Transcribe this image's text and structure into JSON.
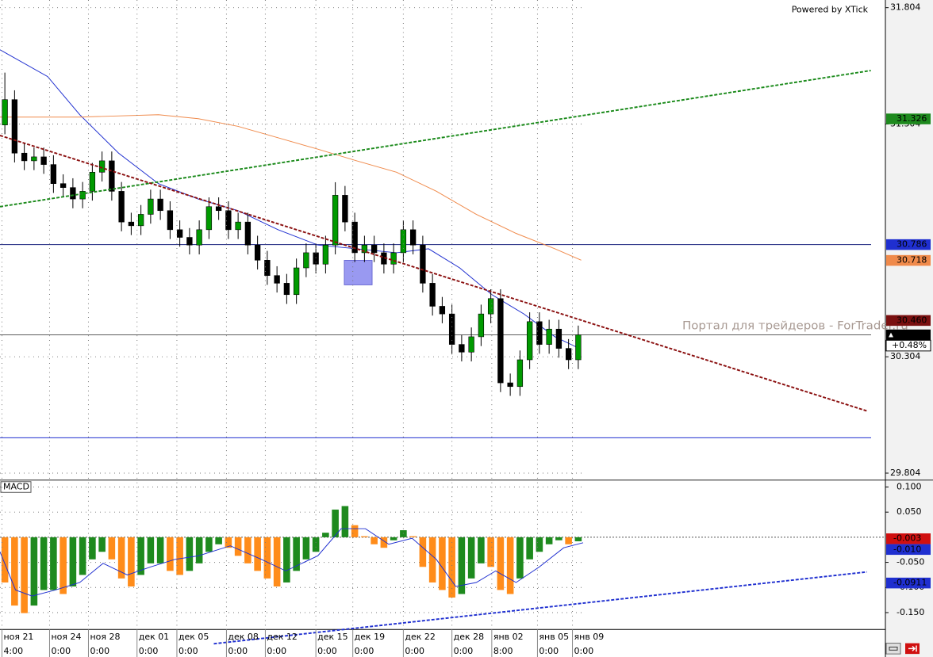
{
  "chart_data": [
    {
      "type": "candlestick",
      "xlim": [
        0,
        91.1
      ],
      "ylim": [
        29.774,
        31.837
      ],
      "yticks": [
        31.804,
        31.304,
        30.304,
        29.804
      ],
      "grid": true,
      "up_color": "#009a00",
      "down_color": "#000000",
      "x": [
        0.5,
        1.5,
        2.5,
        3.5,
        4.5,
        5.5,
        6.5,
        7.5,
        8.5,
        9.5,
        10.5,
        11.5,
        12.5,
        13.5,
        14.5,
        15.5,
        16.5,
        17.5,
        18.5,
        19.5,
        20.5,
        21.5,
        22.5,
        23.5,
        24.5,
        25.5,
        26.5,
        27.5,
        28.5,
        29.5,
        30.5,
        31.5,
        32.5,
        33.5,
        34.5,
        35.5,
        36.5,
        37.5,
        38.5,
        39.5,
        40.5,
        41.5,
        42.5,
        43.5,
        44.5,
        45.5,
        46.5,
        47.5,
        48.5,
        49.5,
        50.5,
        51.5,
        52.5,
        53.5,
        54.5,
        55.5,
        56.5,
        57.5,
        58.5,
        59.5
      ],
      "open": [
        31.3,
        31.409,
        31.179,
        31.146,
        31.163,
        31.13,
        31.048,
        31.031,
        30.982,
        31.015,
        31.097,
        31.146,
        31.015,
        30.883,
        30.867,
        30.916,
        30.982,
        30.932,
        30.85,
        30.817,
        30.784,
        30.85,
        30.949,
        30.932,
        30.85,
        30.883,
        30.784,
        30.719,
        30.653,
        30.62,
        30.571,
        30.686,
        30.751,
        30.702,
        30.784,
        30.998,
        30.883,
        30.751,
        30.784,
        30.751,
        30.702,
        30.751,
        30.85,
        30.784,
        30.62,
        30.521,
        30.488,
        30.357,
        30.324,
        30.39,
        30.488,
        30.554,
        30.192,
        30.176,
        30.291,
        30.455,
        30.357,
        30.423,
        30.34,
        30.291
      ],
      "high": [
        31.525,
        31.449,
        31.219,
        31.203,
        31.203,
        31.17,
        31.088,
        31.071,
        31.055,
        31.137,
        31.186,
        31.186,
        31.055,
        30.923,
        30.956,
        31.022,
        31.022,
        30.972,
        30.89,
        30.857,
        30.89,
        30.989,
        30.989,
        30.972,
        30.923,
        30.923,
        30.824,
        30.759,
        30.693,
        30.66,
        30.726,
        30.791,
        30.791,
        30.824,
        31.054,
        31.038,
        30.923,
        30.824,
        30.824,
        30.791,
        30.791,
        30.89,
        30.89,
        30.824,
        30.66,
        30.561,
        30.528,
        30.397,
        30.43,
        30.528,
        30.594,
        30.594,
        30.232,
        30.331,
        30.495,
        30.495,
        30.463,
        30.463,
        30.38,
        30.438
      ],
      "low": [
        31.26,
        31.139,
        31.106,
        31.106,
        31.09,
        31.008,
        30.991,
        30.942,
        30.942,
        30.975,
        31.057,
        30.975,
        30.843,
        30.827,
        30.827,
        30.876,
        30.892,
        30.81,
        30.777,
        30.744,
        30.744,
        30.81,
        30.892,
        30.81,
        30.81,
        30.744,
        30.679,
        30.613,
        30.58,
        30.531,
        30.531,
        30.646,
        30.662,
        30.662,
        30.744,
        30.843,
        30.711,
        30.711,
        30.711,
        30.662,
        30.662,
        30.711,
        30.744,
        30.58,
        30.481,
        30.448,
        30.317,
        30.284,
        30.284,
        30.35,
        30.448,
        30.152,
        30.136,
        30.136,
        30.251,
        30.317,
        30.317,
        30.3,
        30.251,
        30.251
      ],
      "close": [
        31.409,
        31.179,
        31.146,
        31.163,
        31.13,
        31.048,
        31.031,
        30.982,
        31.015,
        31.097,
        31.146,
        31.015,
        30.883,
        30.867,
        30.916,
        30.982,
        30.932,
        30.85,
        30.817,
        30.784,
        30.85,
        30.949,
        30.932,
        30.85,
        30.883,
        30.784,
        30.719,
        30.653,
        30.62,
        30.571,
        30.686,
        30.751,
        30.702,
        30.784,
        30.998,
        30.883,
        30.751,
        30.784,
        30.751,
        30.702,
        30.751,
        30.85,
        30.784,
        30.62,
        30.521,
        30.488,
        30.357,
        30.324,
        30.39,
        30.488,
        30.554,
        30.192,
        30.176,
        30.291,
        30.455,
        30.357,
        30.423,
        30.34,
        30.291,
        30.398
      ],
      "lines": [
        {
          "color": "#1f2fd0",
          "x": [
            0,
            4.9,
            8.2,
            12.2,
            16.3,
            20.4,
            24.5,
            28.6,
            32.7,
            36.7,
            40.8,
            44.1,
            47.3,
            50.6,
            53.9,
            57.1,
            59.6
          ],
          "values": [
            31.623,
            31.508,
            31.344,
            31.179,
            31.048,
            30.982,
            30.932,
            30.85,
            30.784,
            30.768,
            30.751,
            30.768,
            30.686,
            30.571,
            30.488,
            30.39,
            30.34
          ]
        },
        {
          "color": "#f08a4b",
          "x": [
            0,
            8.2,
            16.3,
            20.4,
            24.5,
            28.6,
            32.7,
            36.7,
            40.8,
            44.9,
            49.0,
            53.1,
            57.1,
            59.8
          ],
          "values": [
            31.334,
            31.334,
            31.344,
            31.327,
            31.294,
            31.245,
            31.196,
            31.146,
            31.097,
            31.015,
            30.916,
            30.834,
            30.768,
            30.719
          ]
        }
      ],
      "trendlines": [
        {
          "color": "#1a8a1a",
          "x": [
            0,
            89.6
          ],
          "values": [
            30.949,
            31.534
          ]
        },
        {
          "color": "#8b1010",
          "x": [
            0,
            89.2
          ],
          "values": [
            31.255,
            30.071
          ]
        }
      ],
      "hlines": [
        {
          "value": 30.786,
          "color": "#1a237e"
        },
        {
          "value": 29.956,
          "color": "#1f2fd0"
        },
        {
          "value": 30.398,
          "color": "#444444"
        }
      ],
      "price_labels": [
        {
          "value": 31.326,
          "color": "#1e8a1e"
        },
        {
          "value": 30.786,
          "color": "#1f2fd0"
        },
        {
          "value": 30.718,
          "color": "#f08a4b"
        },
        {
          "value": 30.46,
          "label": "30.460",
          "color": "#7a1010"
        },
        {
          "value": 30.398,
          "color": "#000000"
        }
      ],
      "change_label": "+0.48%",
      "credit": "Powered by XTick",
      "watermark": "Портал для трейдеров - ForTrader.ru"
    },
    {
      "type": "bar",
      "title": "MACD",
      "xlim": [
        0,
        91.1
      ],
      "ylim": [
        -0.1835,
        0.1137
      ],
      "yticks": [
        {
          "value": 0.1,
          "label": "0.100"
        },
        {
          "value": 0.05,
          "label": "0.050"
        },
        {
          "value": -0.05,
          "label": "-0.050"
        },
        {
          "value": -0.1,
          "label": "-0.100"
        },
        {
          "value": -0.15,
          "label": "-0.150"
        }
      ],
      "x": [
        0.5,
        1.5,
        2.5,
        3.5,
        4.5,
        5.5,
        6.5,
        7.5,
        8.5,
        9.5,
        10.5,
        11.5,
        12.5,
        13.5,
        14.5,
        15.5,
        16.5,
        17.5,
        18.5,
        19.5,
        20.5,
        21.5,
        22.5,
        23.5,
        24.5,
        25.5,
        26.5,
        27.5,
        28.5,
        29.5,
        30.5,
        31.5,
        32.5,
        33.5,
        34.5,
        35.5,
        36.5,
        37.5,
        38.5,
        39.5,
        40.5,
        41.5,
        42.5,
        43.5,
        44.5,
        45.5,
        46.5,
        47.5,
        48.5,
        49.5,
        50.5,
        51.5,
        52.5,
        53.5,
        54.5,
        55.5,
        56.5,
        57.5,
        58.5,
        59.5
      ],
      "values": [
        -0.09,
        -0.136,
        -0.151,
        -0.136,
        -0.105,
        -0.105,
        -0.113,
        -0.098,
        -0.075,
        -0.044,
        -0.029,
        -0.044,
        -0.082,
        -0.098,
        -0.075,
        -0.052,
        -0.052,
        -0.067,
        -0.075,
        -0.067,
        -0.052,
        -0.029,
        -0.014,
        -0.021,
        -0.037,
        -0.052,
        -0.067,
        -0.082,
        -0.098,
        -0.09,
        -0.067,
        -0.044,
        -0.029,
        0.009,
        0.055,
        0.062,
        0.024,
        0.002,
        -0.014,
        -0.021,
        -0.006,
        0.014,
        0.002,
        -0.059,
        -0.09,
        -0.105,
        -0.12,
        -0.113,
        -0.082,
        -0.052,
        -0.059,
        -0.105,
        -0.113,
        -0.082,
        -0.044,
        -0.029,
        -0.014,
        -0.006,
        -0.014,
        -0.008
      ],
      "colors": [
        "#ff8c1a",
        "#ff8c1a",
        "#ff8c1a",
        "#1e8a1e",
        "#1e8a1e",
        "#1e8a1e",
        "#ff8c1a",
        "#1e8a1e",
        "#1e8a1e",
        "#1e8a1e",
        "#1e8a1e",
        "#ff8c1a",
        "#ff8c1a",
        "#ff8c1a",
        "#1e8a1e",
        "#1e8a1e",
        "#1e8a1e",
        "#ff8c1a",
        "#ff8c1a",
        "#1e8a1e",
        "#1e8a1e",
        "#1e8a1e",
        "#1e8a1e",
        "#ff8c1a",
        "#ff8c1a",
        "#ff8c1a",
        "#ff8c1a",
        "#ff8c1a",
        "#ff8c1a",
        "#1e8a1e",
        "#1e8a1e",
        "#1e8a1e",
        "#1e8a1e",
        "#1e8a1e",
        "#1e8a1e",
        "#1e8a1e",
        "#ff8c1a",
        "#ff8c1a",
        "#ff8c1a",
        "#ff8c1a",
        "#1e8a1e",
        "#1e8a1e",
        "#ff8c1a",
        "#ff8c1a",
        "#ff8c1a",
        "#ff8c1a",
        "#ff8c1a",
        "#1e8a1e",
        "#1e8a1e",
        "#1e8a1e",
        "#ff8c1a",
        "#ff8c1a",
        "#ff8c1a",
        "#1e8a1e",
        "#1e8a1e",
        "#1e8a1e",
        "#1e8a1e",
        "#1e8a1e",
        "#ff8c1a",
        "#1e8a1e"
      ],
      "signal": {
        "color": "#1f2fd0",
        "x": [
          0,
          1.6,
          3.3,
          5.7,
          8.2,
          10.6,
          13.1,
          15.5,
          18.0,
          20.4,
          23.7,
          26.9,
          29.4,
          32.7,
          35.1,
          37.6,
          40.0,
          42.4,
          44.9,
          46.9,
          49.0,
          51.0,
          53.1,
          55.5,
          58.0,
          60.0
        ],
        "values": [
          -0.029,
          -0.105,
          -0.117,
          -0.105,
          -0.09,
          -0.052,
          -0.075,
          -0.059,
          -0.044,
          -0.037,
          -0.017,
          -0.044,
          -0.067,
          -0.037,
          0.017,
          0.017,
          -0.014,
          -0.002,
          -0.044,
          -0.098,
          -0.09,
          -0.067,
          -0.09,
          -0.059,
          -0.021,
          -0.011
        ]
      },
      "trendlines": [
        {
          "color": "#1f2fd0",
          "x": [
            22.0,
            89.2
          ],
          "values": [
            -0.212,
            -0.069
          ]
        }
      ],
      "value_markers": [
        {
          "value": -0.003,
          "label": "-0.003",
          "color": "#d01010"
        },
        {
          "value": -0.01,
          "label": "-0.010",
          "color": "#1f2fd0"
        },
        {
          "value": -0.0911,
          "color": "#1f2fd0"
        }
      ],
      "xticks": [
        {
          "value": 0.2,
          "label": "ноя 21"
        },
        {
          "value": 5.1,
          "label": "ноя 24"
        },
        {
          "value": 9.1,
          "label": "ноя 28"
        },
        {
          "value": 14.1,
          "label": "дек 01"
        },
        {
          "value": 18.2,
          "label": "дек 05"
        },
        {
          "value": 23.3,
          "label": "дек 08"
        },
        {
          "value": 27.3,
          "label": "дек 12"
        },
        {
          "value": 32.5,
          "label": "дек 15"
        },
        {
          "value": 36.3,
          "label": "дек 19"
        },
        {
          "value": 41.5,
          "label": "дек 22"
        },
        {
          "value": 46.5,
          "label": "дек 28"
        },
        {
          "value": 50.6,
          "label": "янв 02"
        },
        {
          "value": 55.3,
          "label": "янв 05"
        },
        {
          "value": 58.9,
          "label": "янв 09"
        }
      ],
      "time_labels": [
        "4:00",
        "0:00",
        "0:00",
        "0:00",
        "0:00",
        "0:00",
        "0:00",
        "0:00",
        "0:00",
        "0:00",
        "0:00",
        "8:00",
        "0:00",
        "0:00"
      ]
    }
  ]
}
